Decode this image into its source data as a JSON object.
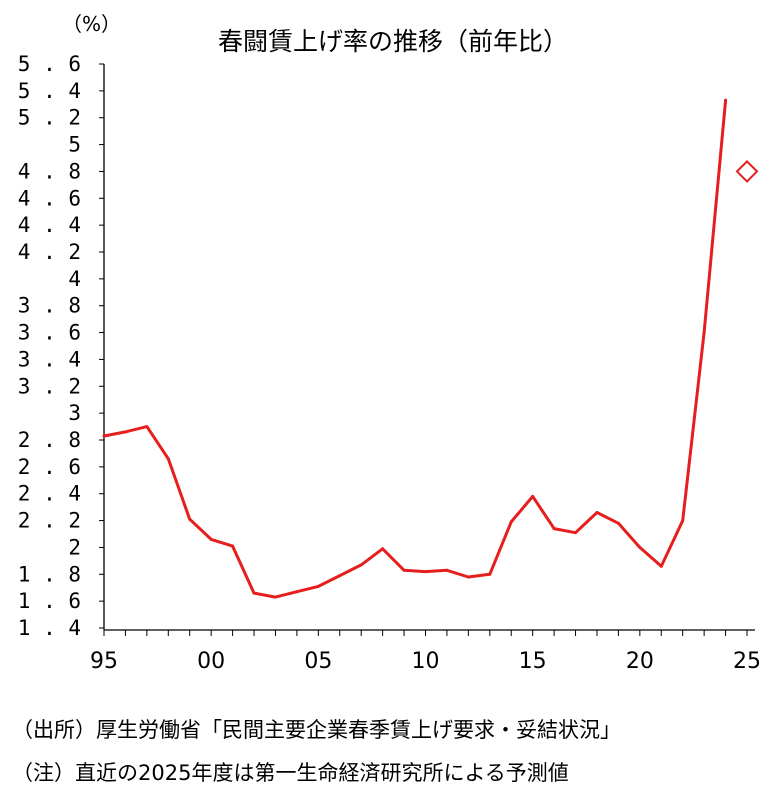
{
  "colors": {
    "series": "#e61e1e",
    "axis": "#000000"
  },
  "chart_data": {
    "type": "line",
    "title": "春闘賃上げ率の推移（前年比）",
    "ylabel": "（%）",
    "xlabel": "",
    "ylim": [
      1.4,
      5.6
    ],
    "ystep": 0.2,
    "xlim": [
      1995,
      2025
    ],
    "xticks": [
      {
        "x": 1995,
        "label": "95"
      },
      {
        "x": 2000,
        "label": "00"
      },
      {
        "x": 2005,
        "label": "05"
      },
      {
        "x": 2010,
        "label": "10"
      },
      {
        "x": 2015,
        "label": "15"
      },
      {
        "x": 2020,
        "label": "20"
      },
      {
        "x": 2025,
        "label": "25"
      }
    ],
    "grid": false,
    "series": [
      {
        "x": [
          1995,
          1996,
          1997,
          1998,
          1999,
          2000,
          2001,
          2002,
          2003,
          2004,
          2005,
          2006,
          2007,
          2008,
          2009,
          2010,
          2011,
          2012,
          2013,
          2014,
          2015,
          2016,
          2017,
          2018,
          2019,
          2020,
          2021,
          2022,
          2023,
          2024
        ],
        "values": [
          2.83,
          2.86,
          2.9,
          2.66,
          2.21,
          2.06,
          2.01,
          1.66,
          1.63,
          1.67,
          1.71,
          1.79,
          1.87,
          1.99,
          1.83,
          1.82,
          1.83,
          1.78,
          1.8,
          2.19,
          2.38,
          2.14,
          2.11,
          2.26,
          2.18,
          2.0,
          1.86,
          2.2,
          3.6,
          5.33
        ]
      },
      {
        "x": [
          2025
        ],
        "values": [
          4.8
        ],
        "marker": "diamond"
      }
    ]
  },
  "notes": {
    "source": "（出所）厚生労働省「民間主要企業春季賃上げ要求・妥結状況」",
    "caution": "（注）直近の2025年度は第一生命経済研究所による予測値"
  }
}
